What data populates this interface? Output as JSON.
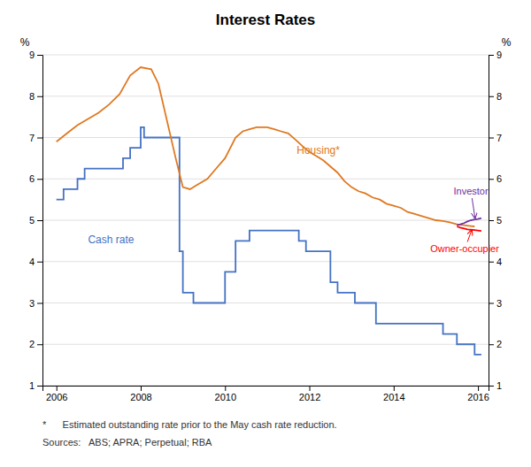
{
  "chart_data": {
    "type": "line",
    "title": "Interest Rates",
    "y_label": "%",
    "y2_label": "%",
    "xlim": [
      2005.67,
      2016.25
    ],
    "xticks": [
      2006,
      2008,
      2010,
      2012,
      2014,
      2016
    ],
    "ylim": [
      1,
      9
    ],
    "yticks": [
      1,
      2,
      3,
      4,
      5,
      6,
      7,
      8,
      9
    ],
    "y2lim": [
      1,
      9
    ],
    "y2ticks": [
      1,
      2,
      3,
      4,
      5,
      6,
      7,
      8,
      9
    ],
    "grid": true,
    "series": [
      {
        "color": "#4472c4",
        "x": [
          2006.0,
          2006.17,
          2006.17,
          2006.5,
          2006.5,
          2006.67,
          2006.67,
          2007.58,
          2007.58,
          2007.75,
          2007.75,
          2008.0,
          2008.0,
          2008.08,
          2008.08,
          2008.92,
          2008.92,
          2009.0,
          2009.0,
          2009.25,
          2009.25,
          2009.33,
          2009.33,
          2010.0,
          2010.0,
          2010.25,
          2010.25,
          2010.58,
          2010.58,
          2010.75,
          2010.75,
          2011.75,
          2011.75,
          2011.92,
          2011.92,
          2012.5,
          2012.5,
          2012.67,
          2012.67,
          2013.08,
          2013.08,
          2013.58,
          2013.58,
          2015.17,
          2015.17,
          2015.5,
          2015.5,
          2015.92,
          2015.92,
          2016.08
        ],
        "values": [
          5.5,
          5.5,
          5.75,
          5.75,
          6.0,
          6.0,
          6.25,
          6.25,
          6.5,
          6.5,
          6.75,
          6.75,
          7.25,
          7.25,
          7.0,
          7.0,
          4.25,
          4.25,
          3.25,
          3.25,
          3.0,
          3.0,
          3.0,
          3.0,
          3.75,
          3.75,
          4.5,
          4.5,
          4.75,
          4.75,
          4.75,
          4.75,
          4.5,
          4.5,
          4.25,
          4.25,
          3.5,
          3.5,
          3.25,
          3.25,
          3.0,
          3.0,
          2.5,
          2.5,
          2.25,
          2.25,
          2.0,
          2.0,
          1.75,
          1.75
        ]
      },
      {
        "color": "#e07820",
        "x": [
          2006.0,
          2006.25,
          2006.5,
          2006.75,
          2007.0,
          2007.25,
          2007.5,
          2007.75,
          2008.0,
          2008.25,
          2008.42,
          2008.83,
          2009.0,
          2009.17,
          2009.33,
          2009.58,
          2009.83,
          2010.0,
          2010.25,
          2010.42,
          2010.58,
          2010.75,
          2011.0,
          2011.17,
          2011.33,
          2011.5,
          2011.67,
          2011.83,
          2012.0,
          2012.17,
          2012.33,
          2012.5,
          2012.67,
          2012.83,
          2013.0,
          2013.17,
          2013.33,
          2013.5,
          2013.67,
          2013.83,
          2014.0,
          2014.17,
          2014.33,
          2014.5,
          2014.67,
          2014.83,
          2015.0,
          2015.17,
          2015.33,
          2015.5,
          2015.67,
          2015.83,
          2015.92
        ],
        "values": [
          6.9,
          7.1,
          7.3,
          7.45,
          7.6,
          7.8,
          8.05,
          8.5,
          8.7,
          8.65,
          8.3,
          6.5,
          5.8,
          5.75,
          5.85,
          6.0,
          6.3,
          6.5,
          7.0,
          7.15,
          7.2,
          7.25,
          7.25,
          7.2,
          7.15,
          7.1,
          6.95,
          6.8,
          6.65,
          6.55,
          6.45,
          6.3,
          6.15,
          5.95,
          5.8,
          5.7,
          5.65,
          5.55,
          5.5,
          5.4,
          5.35,
          5.3,
          5.2,
          5.15,
          5.1,
          5.05,
          5.0,
          4.98,
          4.95,
          4.9,
          4.88,
          4.86,
          4.85
        ]
      },
      {
        "color": "#7030a0",
        "x": [
          2015.5,
          2015.58,
          2015.67,
          2015.75,
          2015.83,
          2015.92,
          2016.0,
          2016.08
        ],
        "values": [
          4.88,
          4.9,
          4.93,
          4.97,
          5.0,
          5.02,
          5.03,
          5.05
        ]
      },
      {
        "color": "#ff0000",
        "x": [
          2015.5,
          2015.58,
          2015.67,
          2015.75,
          2015.83,
          2015.92,
          2016.0,
          2016.08
        ],
        "values": [
          4.85,
          4.82,
          4.8,
          4.78,
          4.77,
          4.76,
          4.75,
          4.74
        ]
      }
    ],
    "annotations": [
      {
        "text": "Housing*",
        "x": 2011.7,
        "y": 6.6,
        "color": "#e07820"
      },
      {
        "text": "Cash rate",
        "x": 2006.75,
        "y": 4.45,
        "color": "#4472c4"
      },
      {
        "text": "Investor",
        "x": 2015.42,
        "y": 5.62,
        "color": "#7030a0",
        "arrow_x": 2015.93,
        "arrow_y": 5.05
      },
      {
        "text": "Owner-occupier",
        "x": 2014.87,
        "y": 4.22,
        "color": "#ff0000",
        "arrow_x": 2015.85,
        "arrow_y": 4.76
      }
    ],
    "notes": [
      "*      Estimated outstanding rate prior to the May cash rate reduction.",
      "Sources:   ABS; APRA; Perpetual; RBA"
    ]
  }
}
